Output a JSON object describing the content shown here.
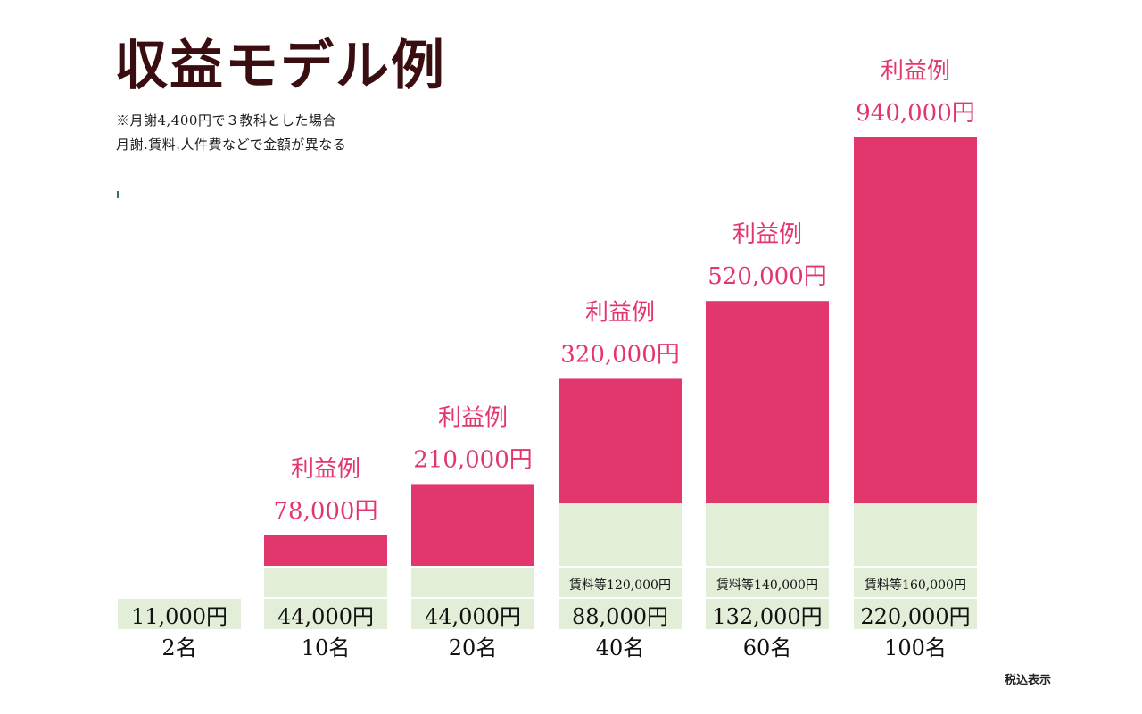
{
  "header": {
    "title": "収益モデル例",
    "note_line1": "※月謝4,400円で３教科とした場合",
    "note_line2": "月謝.賃料.人件費などで金額が異なる"
  },
  "footer": {
    "tax_note": "税込表示"
  },
  "colors": {
    "profit": "#e2376d",
    "cost": "#e2eed8",
    "profit_text": "#e2376d",
    "title": "#3a0e10"
  },
  "chart_data": {
    "type": "bar",
    "stacked": true,
    "title": "収益モデル例",
    "categories": [
      "2名",
      "10名",
      "20名",
      "40名",
      "60名",
      "100名"
    ],
    "revenue_labels": [
      "11,000円",
      "44,000円",
      "44,000円",
      "88,000円",
      "132,000円",
      "220,000円"
    ],
    "series": [
      {
        "name": "",
        "values": [
          0,
          0,
          0,
          120000,
          140000,
          160000
        ]
      },
      {
        "name": "利益例",
        "values": [
          0,
          78000,
          210000,
          320000,
          520000,
          940000
        ]
      }
    ],
    "profit_heading": "利益例",
    "profit_labels": [
      "",
      "78,000円",
      "210,000円",
      "320,000円",
      "520,000円",
      "940,000円"
    ],
    "cost_labels": [
      "",
      "",
      "",
      "賃料等120,000円",
      "賃料等140,000円",
      "賃料等160,000円"
    ]
  }
}
